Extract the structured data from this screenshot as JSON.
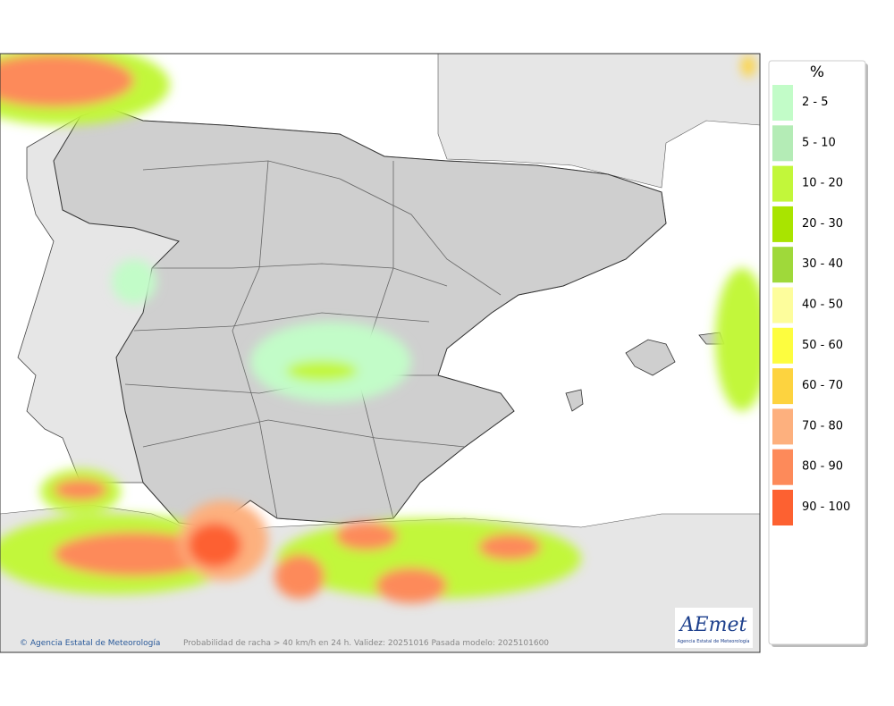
{
  "legend": {
    "title": "%",
    "items": [
      {
        "label": "2 - 5",
        "color": "#c2fcc8"
      },
      {
        "label": "5 - 10",
        "color": "#b4ecb6"
      },
      {
        "label": "10 - 20",
        "color": "#c2f73a"
      },
      {
        "label": "20 - 30",
        "color": "#a9e400"
      },
      {
        "label": "30 - 40",
        "color": "#9fd93a"
      },
      {
        "label": "40 - 50",
        "color": "#fdfd9c"
      },
      {
        "label": "50 - 60",
        "color": "#fdfd3f"
      },
      {
        "label": "60 - 70",
        "color": "#fdd33f"
      },
      {
        "label": "70 - 80",
        "color": "#fdb07e"
      },
      {
        "label": "80 - 90",
        "color": "#fd8a5a"
      },
      {
        "label": "90 - 100",
        "color": "#fd6131"
      }
    ]
  },
  "footer": {
    "credit": "© Agencia Estatal de Meteorología",
    "caption": "Probabilidad de racha > 40 km/h en 24 h. Validez: 20251016 Pasada modelo: 2025101600"
  },
  "logo": {
    "name": "AEmet",
    "subtitle": "Agencia Estatal de Meteorología"
  }
}
